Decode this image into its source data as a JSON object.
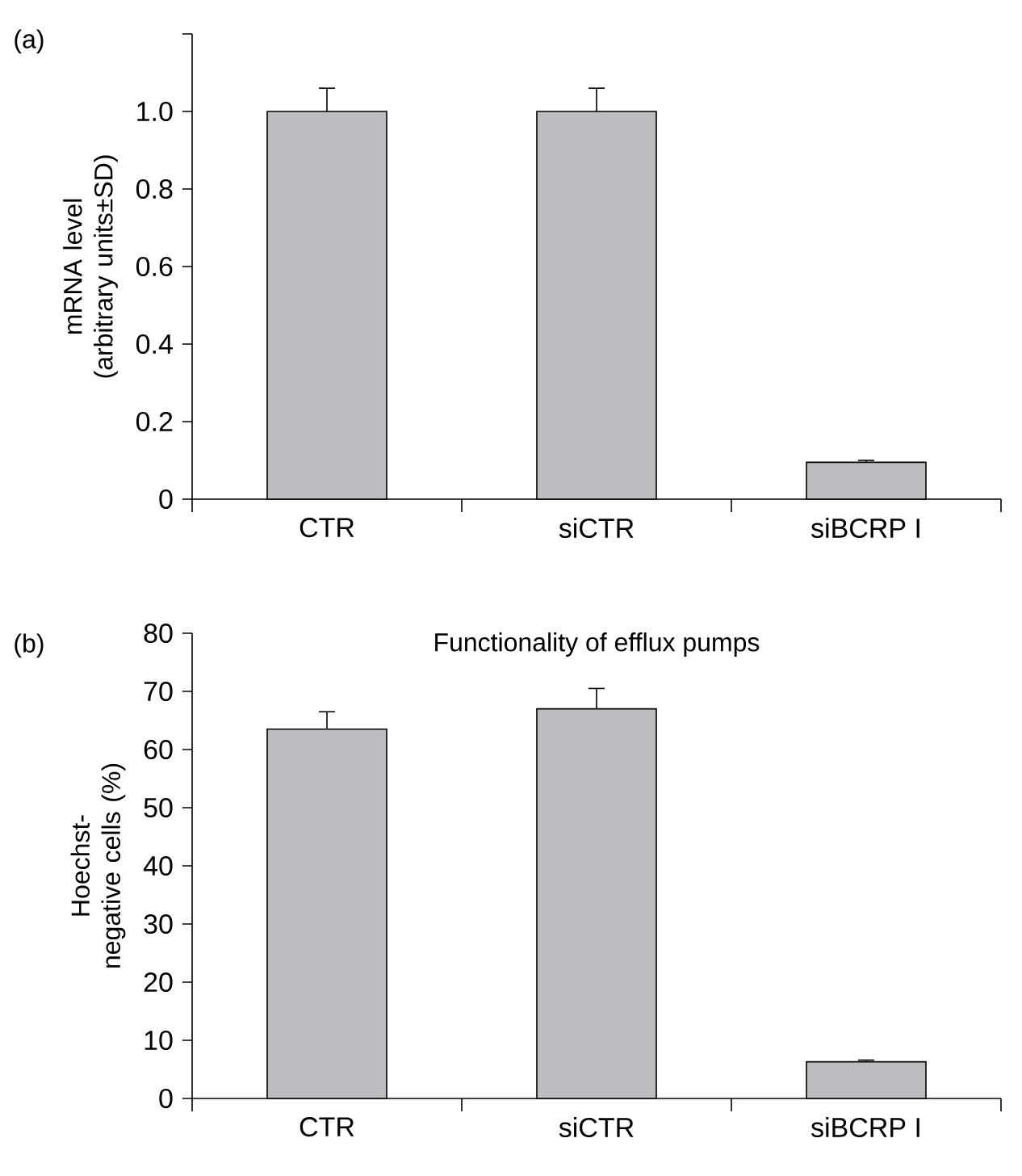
{
  "chart_data": [
    {
      "type": "bar",
      "ylabel": "mRNA level (arbitrary units±SD)",
      "annotations": [
        "(a)"
      ],
      "categories": [
        "CTR",
        "siCTR",
        "siBCRP I"
      ],
      "values": [
        1.0,
        1.0,
        0.095
      ],
      "errors": [
        0.06,
        0.06,
        0.005
      ],
      "color": "#bcbdc1",
      "ylim": [
        0,
        1.2
      ],
      "yticks": [
        0,
        0.2,
        0.4,
        0.6,
        0.8,
        {
          "value": 1.0,
          "label": "1.0"
        },
        {
          "value": 1.2,
          "label": null
        }
      ],
      "grid": false
    },
    {
      "type": "bar",
      "title": "Functionality of efflux pumps",
      "ylabel": "Hoechst-negative cells (%)",
      "annotations": [
        "(b)"
      ],
      "categories": [
        "CTR",
        "siCTR",
        "siBCRP I"
      ],
      "values": [
        63.5,
        67,
        6.3
      ],
      "errors": [
        3,
        3.5,
        0.3
      ],
      "color": "#bcbdc1",
      "ylim": [
        0,
        80
      ],
      "yticks": [
        0,
        10,
        20,
        30,
        40,
        50,
        60,
        70,
        80
      ],
      "grid": false
    }
  ]
}
